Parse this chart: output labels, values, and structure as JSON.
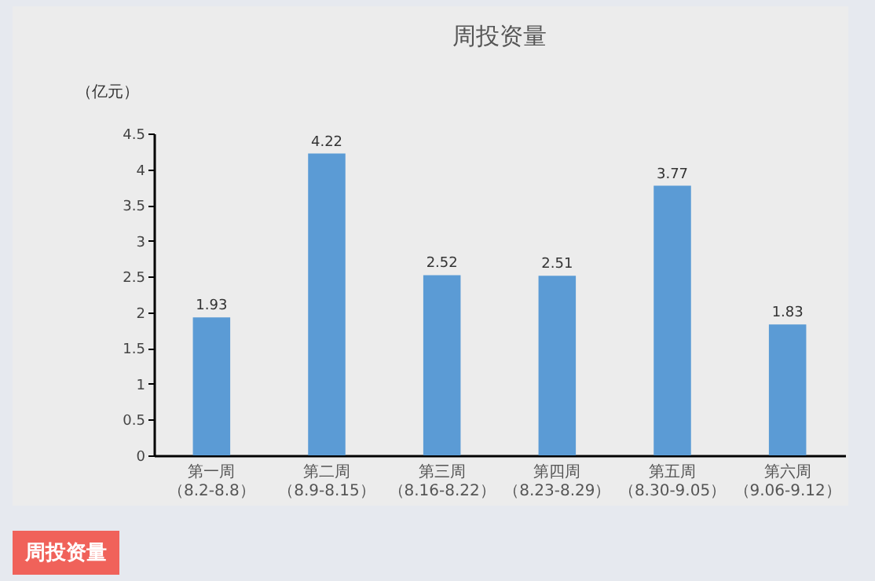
{
  "chart_data": {
    "type": "bar",
    "title": "周投资量",
    "ylabel": "（亿元）",
    "categories": [
      "第一周（8.2-8.8）",
      "第二周（8.9-8.15）",
      "第三周（8.16-8.22）",
      "第四周（8.23-8.29）",
      "第五周（8.30-9.05）",
      "第六周（9.06-9.12）"
    ],
    "values": [
      1.93,
      4.22,
      2.52,
      2.51,
      3.77,
      1.83
    ],
    "color": "#5b9bd5",
    "ylim": [
      0,
      4.5
    ],
    "yticks": [
      0,
      0.5,
      1,
      1.5,
      2,
      2.5,
      3,
      3.5,
      4,
      4.5
    ],
    "data_labels": true,
    "grid": false,
    "annotations": [
      "周投资量"
    ]
  }
}
